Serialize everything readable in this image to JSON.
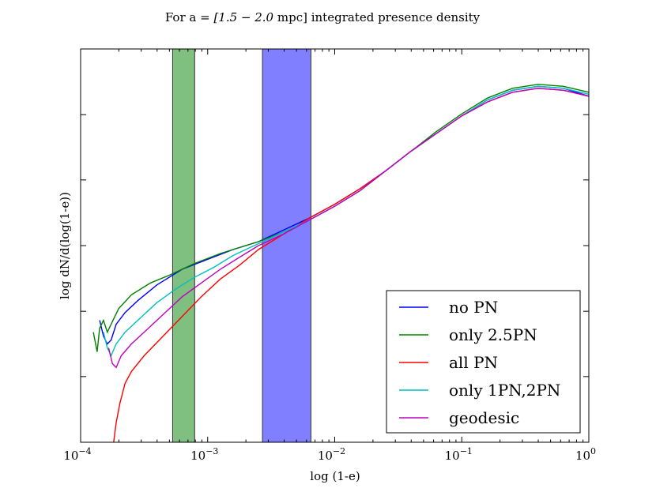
{
  "chart_data": {
    "type": "line",
    "title_prefix": "For a = ",
    "title_math": "[1.5 − 2.0",
    "title_suffix": " mpc] integrated presence density",
    "xlabel": "log (1-e)",
    "ylabel": "log dN/d(log(1-e))",
    "xscale": "log",
    "xlim_exp": [
      -4,
      0
    ],
    "x_ticks": [
      {
        "base": "10",
        "exp": "−4",
        "value": 0.0001
      },
      {
        "base": "10",
        "exp": "−3",
        "value": 0.001
      },
      {
        "base": "10",
        "exp": "−2",
        "value": 0.01
      },
      {
        "base": "10",
        "exp": "−1",
        "value": 0.1
      },
      {
        "base": "10",
        "exp": "0",
        "value": 1
      }
    ],
    "ylim": [
      0,
      1
    ],
    "y_tick_values": [
      0.167,
      0.333,
      0.5,
      0.667,
      0.833
    ],
    "shaded_bands": [
      {
        "name": "green-band",
        "x_start": 0.00053,
        "x_end": 0.00079,
        "color": "#7fbf7f"
      },
      {
        "name": "blue-band",
        "x_start": 0.0027,
        "x_end": 0.0065,
        "color": "#7f7fff"
      }
    ],
    "legend_position": "lower right",
    "series": [
      {
        "name": "no PN",
        "color": "#0000ff",
        "points": [
          [
            -3.85,
            0.31
          ],
          [
            -3.82,
            0.27
          ],
          [
            -3.79,
            0.25
          ],
          [
            -3.76,
            0.26
          ],
          [
            -3.72,
            0.3
          ],
          [
            -3.65,
            0.33
          ],
          [
            -3.55,
            0.36
          ],
          [
            -3.4,
            0.4
          ],
          [
            -3.2,
            0.44
          ],
          [
            -3.0,
            0.465
          ],
          [
            -2.8,
            0.49
          ],
          [
            -2.6,
            0.51
          ],
          [
            -2.4,
            0.54
          ],
          [
            -2.2,
            0.57
          ],
          [
            -2.0,
            0.605
          ],
          [
            -1.8,
            0.645
          ],
          [
            -1.6,
            0.69
          ],
          [
            -1.4,
            0.74
          ],
          [
            -1.2,
            0.785
          ],
          [
            -1.0,
            0.83
          ],
          [
            -0.8,
            0.87
          ],
          [
            -0.6,
            0.895
          ],
          [
            -0.4,
            0.905
          ],
          [
            -0.2,
            0.9
          ],
          [
            0.0,
            0.88
          ]
        ]
      },
      {
        "name": "only 2.5PN",
        "color": "#008000",
        "points": [
          [
            -3.9,
            0.28
          ],
          [
            -3.87,
            0.23
          ],
          [
            -3.85,
            0.29
          ],
          [
            -3.82,
            0.31
          ],
          [
            -3.79,
            0.28
          ],
          [
            -3.76,
            0.3
          ],
          [
            -3.7,
            0.34
          ],
          [
            -3.6,
            0.375
          ],
          [
            -3.45,
            0.405
          ],
          [
            -3.3,
            0.425
          ],
          [
            -3.1,
            0.455
          ],
          [
            -2.9,
            0.48
          ],
          [
            -2.6,
            0.51
          ],
          [
            -2.4,
            0.535
          ],
          [
            -2.2,
            0.565
          ],
          [
            -2.0,
            0.6
          ],
          [
            -1.8,
            0.64
          ],
          [
            -1.6,
            0.69
          ],
          [
            -1.4,
            0.74
          ],
          [
            -1.2,
            0.79
          ],
          [
            -1.0,
            0.835
          ],
          [
            -0.8,
            0.875
          ],
          [
            -0.6,
            0.9
          ],
          [
            -0.4,
            0.91
          ],
          [
            -0.2,
            0.905
          ],
          [
            0.0,
            0.89
          ]
        ]
      },
      {
        "name": "all PN",
        "color": "#ff0000",
        "points": [
          [
            -3.74,
            0.0
          ],
          [
            -3.72,
            0.05
          ],
          [
            -3.69,
            0.1
          ],
          [
            -3.65,
            0.15
          ],
          [
            -3.6,
            0.18
          ],
          [
            -3.5,
            0.22
          ],
          [
            -3.35,
            0.27
          ],
          [
            -3.2,
            0.32
          ],
          [
            -3.05,
            0.37
          ],
          [
            -2.9,
            0.415
          ],
          [
            -2.75,
            0.45
          ],
          [
            -2.6,
            0.49
          ],
          [
            -2.4,
            0.53
          ],
          [
            -2.2,
            0.57
          ],
          [
            -2.0,
            0.605
          ],
          [
            -1.8,
            0.645
          ],
          [
            -1.6,
            0.69
          ],
          [
            -1.4,
            0.74
          ],
          [
            -1.2,
            0.785
          ],
          [
            -1.0,
            0.83
          ],
          [
            -0.8,
            0.865
          ],
          [
            -0.6,
            0.89
          ],
          [
            -0.4,
            0.9
          ],
          [
            -0.2,
            0.895
          ],
          [
            0.0,
            0.88
          ]
        ]
      },
      {
        "name": "only 1PN,2PN",
        "color": "#00bfbf",
        "points": [
          [
            -3.82,
            0.28
          ],
          [
            -3.79,
            0.24
          ],
          [
            -3.76,
            0.22
          ],
          [
            -3.72,
            0.25
          ],
          [
            -3.65,
            0.28
          ],
          [
            -3.55,
            0.31
          ],
          [
            -3.4,
            0.355
          ],
          [
            -3.25,
            0.39
          ],
          [
            -3.1,
            0.42
          ],
          [
            -2.95,
            0.445
          ],
          [
            -2.8,
            0.475
          ],
          [
            -2.6,
            0.505
          ],
          [
            -2.4,
            0.535
          ],
          [
            -2.2,
            0.565
          ],
          [
            -2.0,
            0.6
          ],
          [
            -1.8,
            0.64
          ],
          [
            -1.6,
            0.69
          ],
          [
            -1.4,
            0.74
          ],
          [
            -1.2,
            0.785
          ],
          [
            -1.0,
            0.83
          ],
          [
            -0.8,
            0.87
          ],
          [
            -0.6,
            0.895
          ],
          [
            -0.4,
            0.905
          ],
          [
            -0.2,
            0.9
          ],
          [
            0.0,
            0.885
          ]
        ]
      },
      {
        "name": "geodesic",
        "color": "#bf00bf",
        "points": [
          [
            -3.78,
            0.24
          ],
          [
            -3.75,
            0.2
          ],
          [
            -3.72,
            0.19
          ],
          [
            -3.68,
            0.22
          ],
          [
            -3.6,
            0.25
          ],
          [
            -3.5,
            0.28
          ],
          [
            -3.35,
            0.325
          ],
          [
            -3.2,
            0.37
          ],
          [
            -3.05,
            0.405
          ],
          [
            -2.9,
            0.44
          ],
          [
            -2.75,
            0.47
          ],
          [
            -2.6,
            0.5
          ],
          [
            -2.4,
            0.53
          ],
          [
            -2.2,
            0.565
          ],
          [
            -2.0,
            0.6
          ],
          [
            -1.8,
            0.64
          ],
          [
            -1.6,
            0.69
          ],
          [
            -1.4,
            0.74
          ],
          [
            -1.2,
            0.785
          ],
          [
            -1.0,
            0.83
          ],
          [
            -0.8,
            0.865
          ],
          [
            -0.6,
            0.89
          ],
          [
            -0.4,
            0.9
          ],
          [
            -0.2,
            0.895
          ],
          [
            0.0,
            0.88
          ]
        ]
      }
    ]
  }
}
